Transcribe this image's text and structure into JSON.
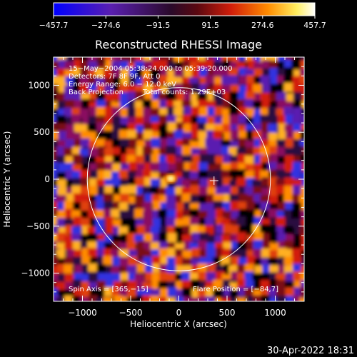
{
  "chart_data": {
    "type": "heatmap",
    "title": "Reconstructed RHESSI Image",
    "xlabel": "Heliocentric X (arcsec)",
    "ylabel": "Heliocentric Y (arcsec)",
    "xlim": [
      -1300,
      1300
    ],
    "ylim": [
      -1300,
      1300
    ],
    "x_ticks": [
      -1000,
      -500,
      0,
      500,
      1000
    ],
    "y_ticks": [
      -1000,
      -500,
      0,
      500,
      1000
    ],
    "x_tick_labels": [
      "−1000",
      "−500",
      "0",
      "500",
      "1000"
    ],
    "y_tick_labels": [
      "−1000",
      "−500",
      "0",
      "500",
      "1000"
    ],
    "colorbar": {
      "min": -457.7,
      "max": 457.7,
      "tick_labels": [
        "−457.7",
        "−274.6",
        "−91.5",
        "91.5",
        "274.6",
        "457.7"
      ],
      "colors": [
        "#0000ff",
        "#6a1b9a",
        "#000000",
        "#c81010",
        "#ff8c00",
        "#ffff80",
        "#ffffff"
      ]
    },
    "annotations": {
      "time_range": "15−May−2004 05:38:24.000 to 05:39:20.000",
      "detectors": "Detectors: 7F 8F 9F, Att 0",
      "energy": "Energy Range: 6.0 − 12.0 keV",
      "method": "Back Projection",
      "counts": "Total counts: 1.29E+03",
      "spin_axis": "Spin Axis = [365,−15]",
      "flare_position": "Flare Position = [−84,7]"
    },
    "solar_limb_radius_arcsec": 950,
    "spin_axis_marker": [
      365,
      -15
    ],
    "bright_spot": [
      -84,
      7
    ]
  },
  "footer": {
    "date": "30-Apr-2022 18:31"
  }
}
